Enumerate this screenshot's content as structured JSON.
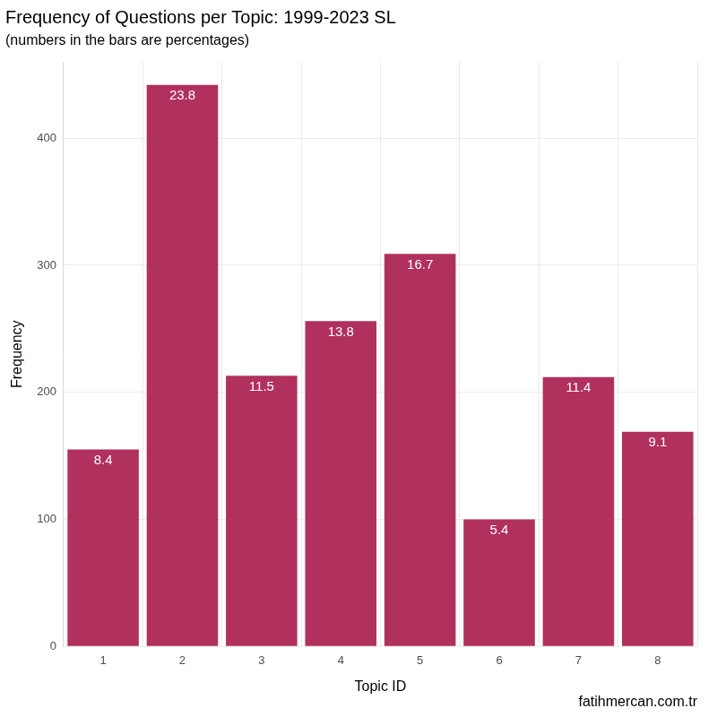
{
  "chart_data": {
    "type": "bar",
    "title": "Frequency of Questions per Topic: 1999-2023 SL",
    "subtitle": "(numbers in the bars are percentages)",
    "x_label": "Topic ID",
    "y_label": "Frequency",
    "caption": "fatihmercan.com.tr",
    "categories": [
      "1",
      "2",
      "3",
      "4",
      "5",
      "6",
      "7",
      "8"
    ],
    "values": [
      155,
      442,
      213,
      256,
      309,
      100,
      212,
      169
    ],
    "percentages": [
      8.4,
      23.8,
      11.5,
      13.8,
      16.7,
      5.4,
      11.4,
      9.1
    ],
    "color": "#b0305e",
    "ylim": [
      0,
      460
    ],
    "yticks": [
      0,
      100,
      200,
      300,
      400
    ],
    "grid": true
  }
}
